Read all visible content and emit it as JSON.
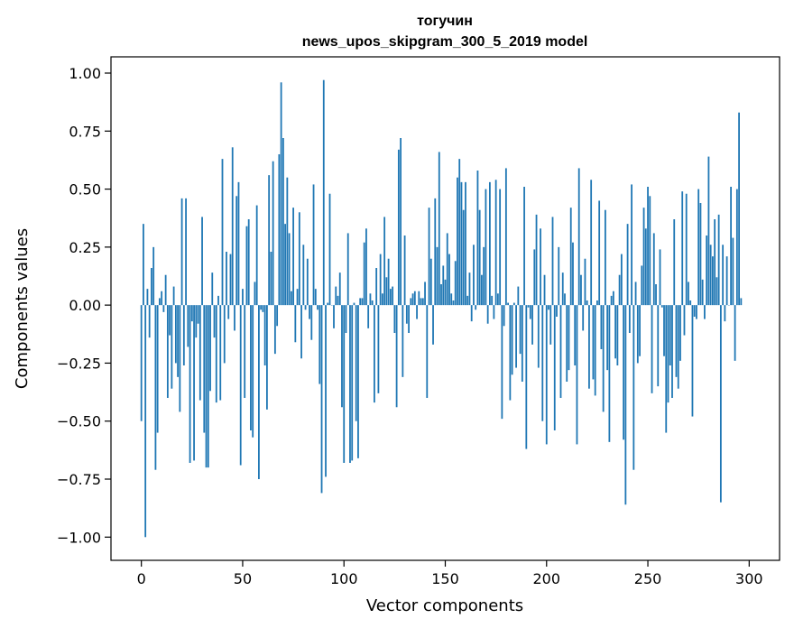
{
  "chart_data": {
    "type": "bar",
    "title_line1": "тогучин",
    "title_line2": "news_upos_skipgram_300_5_2019 model",
    "xlabel": "Vector components",
    "ylabel": "Components values",
    "xlim": [
      -15,
      315
    ],
    "ylim": [
      -1.1,
      1.07
    ],
    "xticks": [
      0,
      50,
      100,
      150,
      200,
      250,
      300
    ],
    "xtick_labels": [
      "0",
      "50",
      "100",
      "150",
      "200",
      "250",
      "300"
    ],
    "yticks": [
      1.0,
      0.75,
      0.5,
      0.25,
      0.0,
      -0.25,
      -0.5,
      -0.75,
      -1.0
    ],
    "ytick_labels": [
      "1.00",
      "0.75",
      "0.50",
      "0.25",
      "0.00",
      "−0.25",
      "−0.50",
      "−0.75",
      "−1.00"
    ],
    "bar_color": "#1f77b4",
    "x": "0..299",
    "values": [
      -0.5,
      0.35,
      -1.0,
      0.07,
      -0.14,
      0.16,
      0.25,
      -0.71,
      -0.55,
      0.03,
      0.06,
      -0.03,
      0.13,
      -0.4,
      -0.13,
      -0.36,
      0.08,
      -0.25,
      -0.31,
      -0.46,
      0.46,
      -0.26,
      0.46,
      -0.18,
      -0.68,
      -0.07,
      -0.67,
      -0.14,
      -0.08,
      -0.41,
      0.38,
      -0.55,
      -0.7,
      -0.7,
      -0.37,
      0.14,
      -0.14,
      -0.42,
      0.04,
      -0.41,
      0.63,
      -0.25,
      0.23,
      -0.06,
      0.22,
      0.68,
      -0.11,
      0.47,
      0.53,
      -0.69,
      0.07,
      -0.4,
      0.34,
      0.37,
      -0.54,
      -0.57,
      0.1,
      0.43,
      -0.75,
      -0.02,
      -0.03,
      -0.26,
      -0.45,
      0.56,
      0.23,
      0.62,
      -0.21,
      -0.09,
      0.65,
      0.96,
      0.72,
      0.35,
      0.55,
      0.31,
      0.06,
      0.42,
      -0.16,
      0.07,
      0.4,
      -0.23,
      0.26,
      -0.02,
      0.2,
      -0.06,
      -0.15,
      0.52,
      0.07,
      -0.02,
      -0.34,
      -0.81,
      0.97,
      -0.74,
      0.01,
      0.48,
      0.0,
      -0.1,
      0.08,
      0.04,
      0.14,
      -0.44,
      -0.68,
      -0.12,
      0.31,
      -0.68,
      -0.67,
      0.01,
      -0.5,
      -0.66,
      0.03,
      0.03,
      0.27,
      0.33,
      -0.1,
      0.05,
      0.02,
      -0.42,
      0.16,
      -0.38,
      0.22,
      0.05,
      0.38,
      0.12,
      0.2,
      0.07,
      0.08,
      -0.12,
      -0.44,
      0.67,
      0.72,
      -0.31,
      0.3,
      -0.08,
      -0.12,
      0.03,
      0.05,
      0.06,
      -0.06,
      0.06,
      0.03,
      0.03,
      0.1,
      -0.4,
      0.42,
      0.2,
      -0.17,
      0.46,
      0.25,
      0.66,
      0.09,
      0.17,
      0.11,
      0.31,
      0.22,
      0.05,
      0.02,
      0.19,
      0.55,
      0.63,
      0.53,
      0.41,
      0.53,
      0.04,
      0.14,
      -0.07,
      0.26,
      -0.02,
      0.58,
      0.41,
      0.13,
      0.25,
      0.5,
      -0.08,
      0.53,
      0.04,
      -0.06,
      0.54,
      0.05,
      0.5,
      -0.49,
      -0.09,
      0.59,
      0.01,
      -0.41,
      -0.3,
      0.01,
      -0.27,
      0.08,
      -0.21,
      -0.33,
      0.51,
      -0.62,
      -0.01,
      -0.06,
      -0.17,
      0.24,
      0.39,
      -0.27,
      0.33,
      -0.5,
      0.13,
      -0.6,
      -0.02,
      -0.17,
      0.38,
      -0.54,
      -0.05,
      0.25,
      -0.4,
      0.14,
      0.05,
      -0.33,
      -0.28,
      0.42,
      0.27,
      -0.26,
      -0.6,
      0.59,
      0.13,
      -0.11,
      0.2,
      0.02,
      -0.36,
      0.54,
      -0.32,
      -0.39,
      0.02,
      0.45,
      -0.19,
      -0.46,
      0.41,
      -0.28,
      -0.59,
      0.04,
      0.06,
      -0.23,
      -0.26,
      0.13,
      0.22,
      -0.58,
      -0.86,
      0.35,
      -0.12,
      0.52,
      -0.71,
      0.1,
      -0.25,
      -0.22,
      0.17,
      0.42,
      0.33,
      0.51,
      0.47,
      -0.38,
      0.31,
      0.09,
      -0.35,
      0.24,
      -0.01,
      -0.22,
      -0.55,
      -0.42,
      -0.26,
      -0.4,
      0.37,
      -0.31,
      -0.36,
      -0.24,
      0.49,
      -0.13,
      0.48,
      0.1,
      0.02,
      -0.48,
      -0.05,
      -0.06,
      0.5,
      0.44,
      0.11,
      -0.06,
      0.3,
      0.64,
      0.26,
      0.21,
      0.37,
      0.12,
      0.39,
      -0.85,
      0.26,
      -0.07,
      0.21,
      0.0,
      0.51,
      0.29,
      -0.24,
      0.5,
      0.83,
      0.03
    ]
  }
}
